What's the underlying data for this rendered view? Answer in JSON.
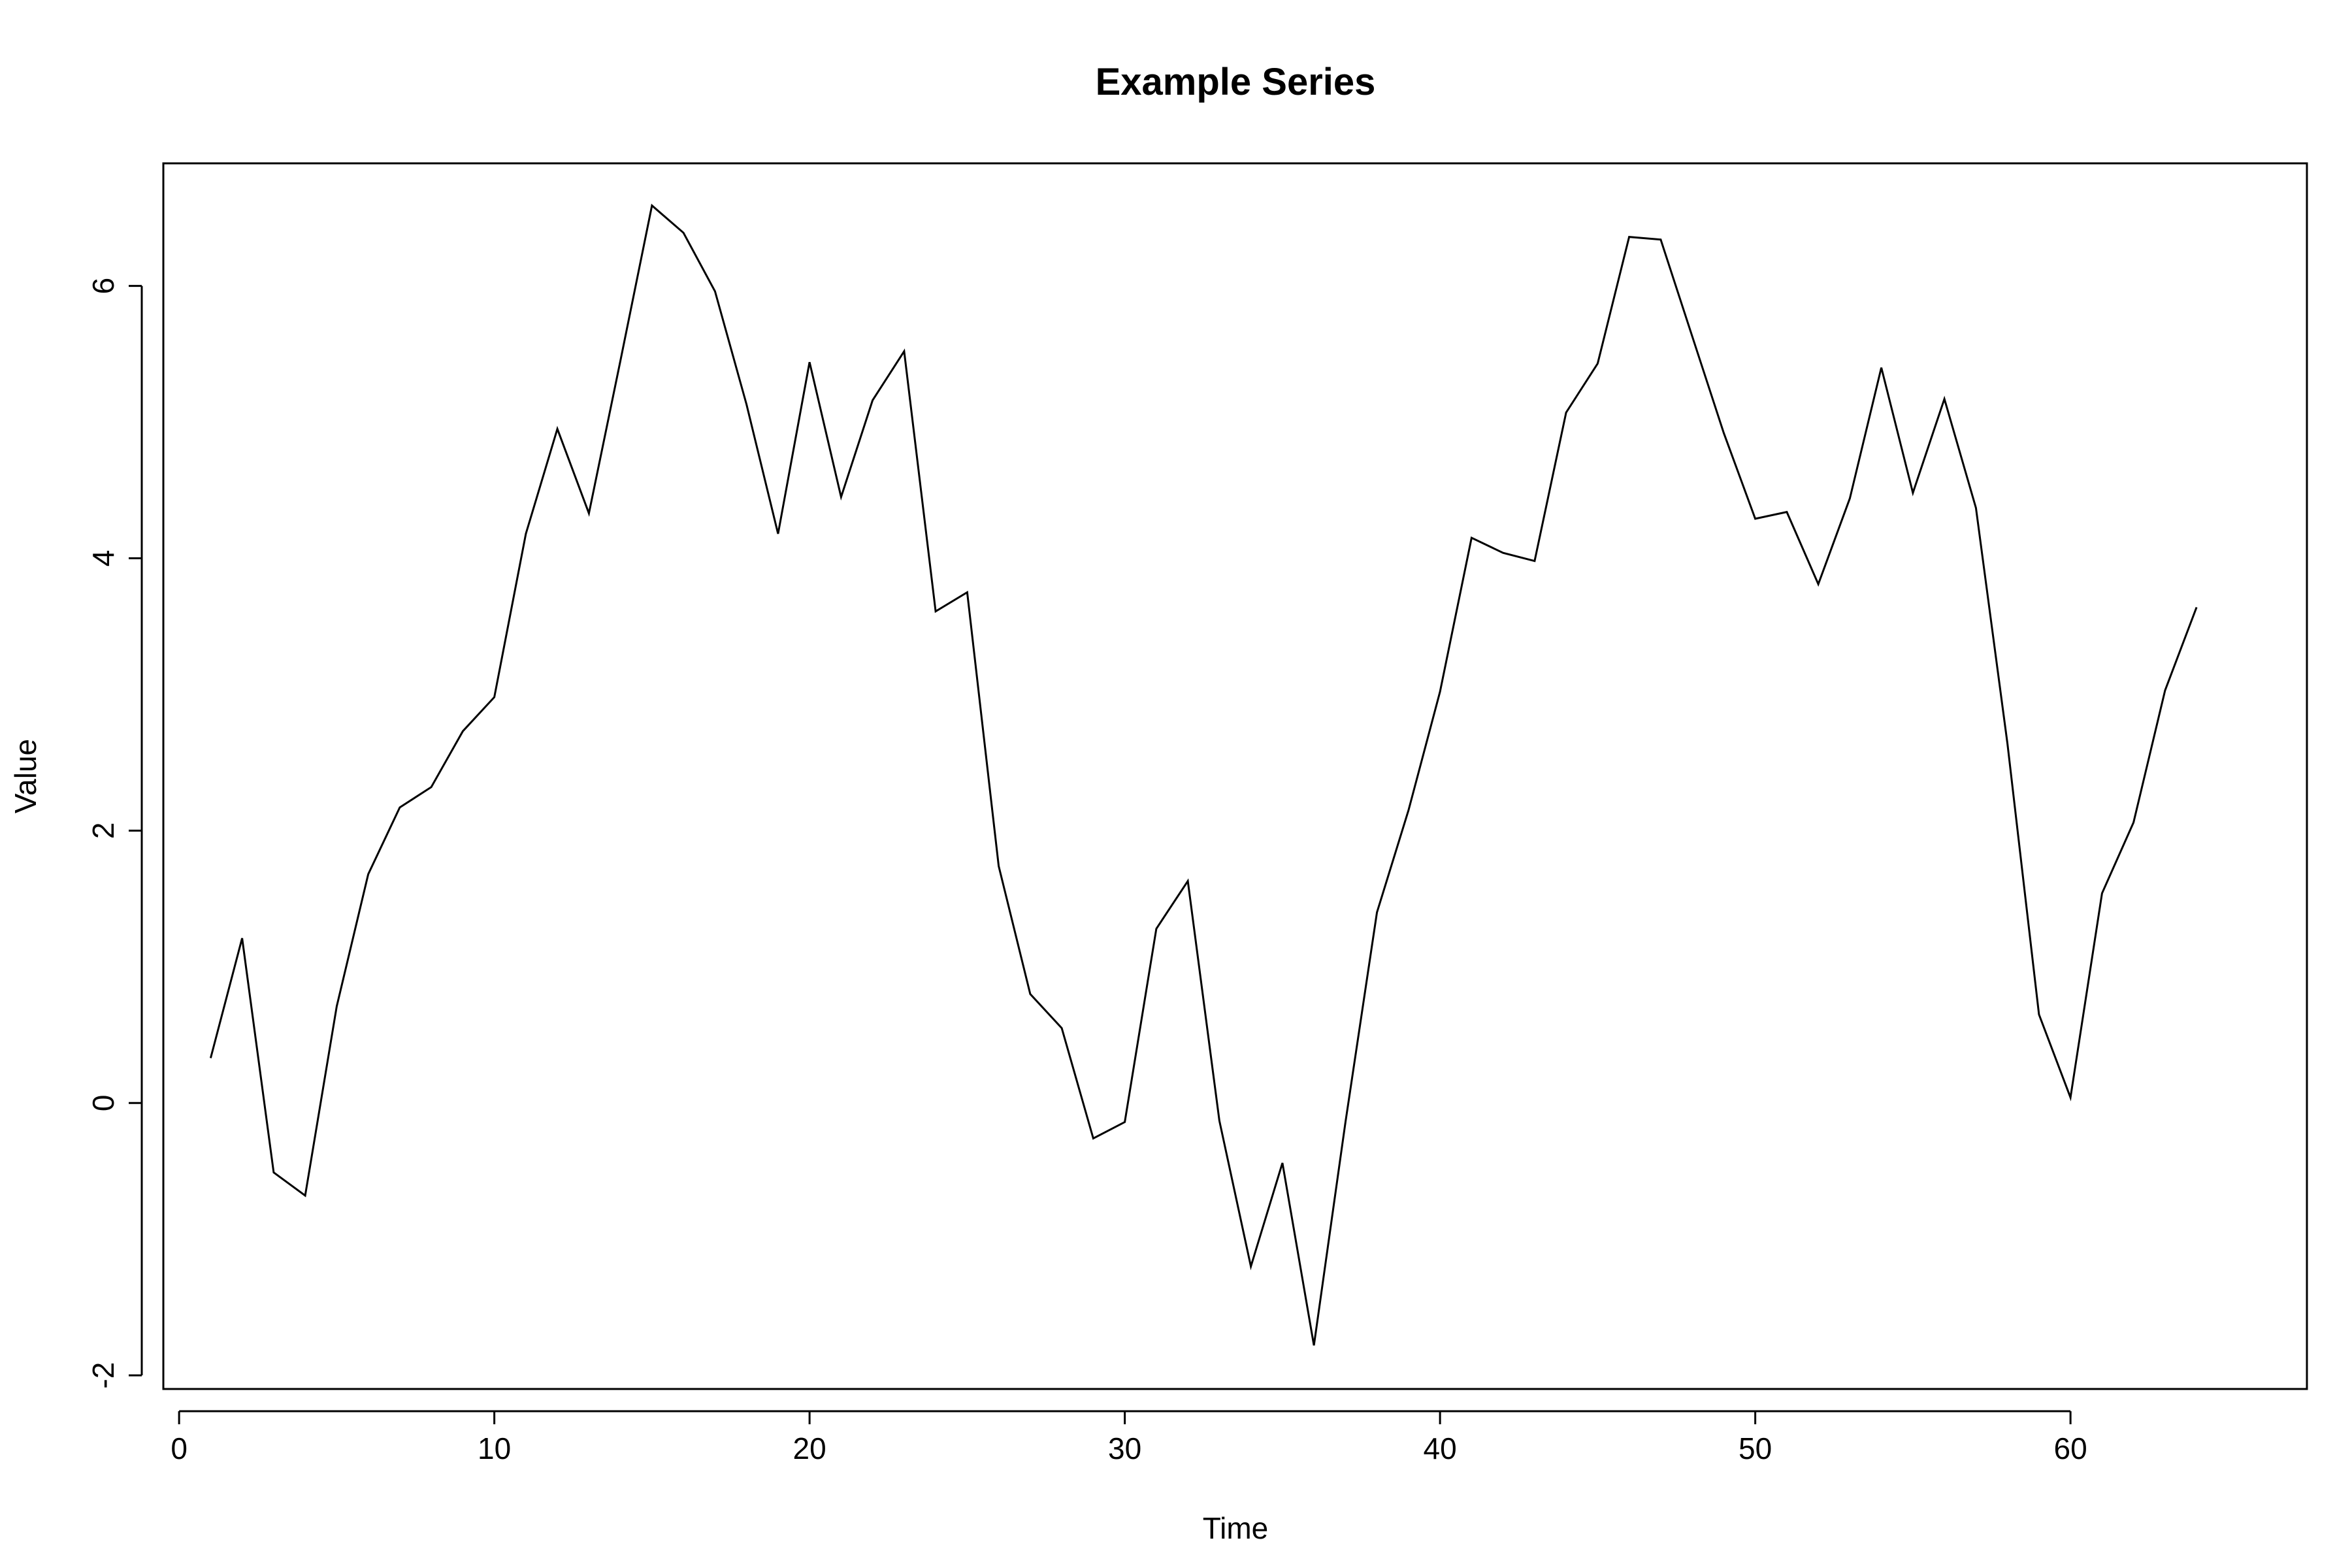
{
  "chart_data": {
    "type": "line",
    "title": "Example Series",
    "xlabel": "Time",
    "ylabel": "Value",
    "xlim": [
      -0.5,
      67.5
    ],
    "ylim": [
      -2.1,
      6.9
    ],
    "xticks": [
      0,
      10,
      20,
      30,
      40,
      50,
      60
    ],
    "yticks": [
      -2,
      0,
      2,
      4,
      6
    ],
    "grid": false,
    "legend": "none",
    "series": [
      {
        "color": "#000000",
        "x": [
          1,
          2,
          3,
          4,
          5,
          6,
          7,
          8,
          9,
          10,
          11,
          12,
          13,
          14,
          15,
          16,
          17,
          18,
          19,
          20,
          21,
          22,
          23,
          24,
          25,
          26,
          27,
          28,
          29,
          30,
          31,
          32,
          33,
          34,
          35,
          36,
          37,
          38,
          39,
          40,
          41,
          42,
          43,
          44,
          45,
          46,
          47,
          48,
          49,
          50,
          51,
          52,
          53,
          54,
          55,
          56,
          57,
          58,
          59,
          60,
          61,
          62,
          63,
          64
        ],
        "y": [
          0.33,
          1.21,
          -0.51,
          -0.68,
          0.71,
          1.68,
          2.17,
          2.32,
          2.73,
          2.98,
          4.18,
          4.95,
          4.33,
          5.45,
          6.59,
          6.39,
          5.96,
          5.13,
          4.18,
          5.44,
          4.45,
          5.16,
          5.52,
          3.61,
          3.75,
          1.74,
          0.8,
          0.55,
          -0.26,
          -0.14,
          1.28,
          1.63,
          -0.13,
          -1.2,
          -0.44,
          -1.78,
          -0.14,
          1.4,
          2.15,
          3.02,
          4.15,
          4.04,
          3.98,
          5.07,
          5.43,
          6.36,
          6.34,
          5.63,
          4.92,
          4.29,
          4.34,
          3.81,
          4.44,
          5.4,
          4.48,
          5.17,
          4.37,
          2.64,
          0.65,
          0.04,
          1.54,
          2.06,
          3.03,
          3.64
        ]
      }
    ]
  }
}
